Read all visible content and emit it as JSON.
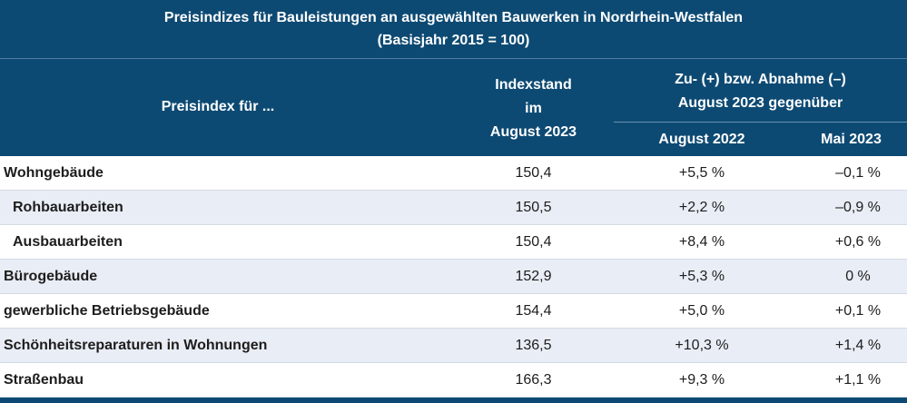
{
  "title": {
    "line1": "Preisindizes für Bauleistungen an ausgewählten Bauwerken in Nordrhein-Westfalen",
    "line2": "(Basisjahr 2015 = 100)"
  },
  "header": {
    "label": "Preisindex für ...",
    "index_line1": "Indexstand",
    "index_line2": "im",
    "index_line3": "August 2023",
    "change_line1": "Zu- (+) bzw. Abnahme (–)",
    "change_line2": "August 2023 gegenüber",
    "col_aug": "August 2022",
    "col_mai": "Mai 2023"
  },
  "rows": [
    {
      "label": "Wohngebäude",
      "index": "150,4",
      "vs_aug": "+5,5 %",
      "vs_mai": "–0,1 %"
    },
    {
      "label": "Rohbauarbeiten",
      "index": "150,5",
      "vs_aug": "+2,2 %",
      "vs_mai": "–0,9 %"
    },
    {
      "label": "Ausbauarbeiten",
      "index": "150,4",
      "vs_aug": "+8,4 %",
      "vs_mai": "+0,6 %"
    },
    {
      "label": "Bürogebäude",
      "index": "152,9",
      "vs_aug": "+5,3 %",
      "vs_mai": "0 %"
    },
    {
      "label": "gewerbliche Betriebsgebäude",
      "index": "154,4",
      "vs_aug": "+5,0 %",
      "vs_mai": "+0,1 %"
    },
    {
      "label": "Schönheitsreparaturen in Wohnungen",
      "index": "136,5",
      "vs_aug": "+10,3 %",
      "vs_mai": "+1,4 %"
    },
    {
      "label": "Straßenbau",
      "index": "166,3",
      "vs_aug": "+9,3 %",
      "vs_mai": "+1,1 %"
    }
  ]
}
